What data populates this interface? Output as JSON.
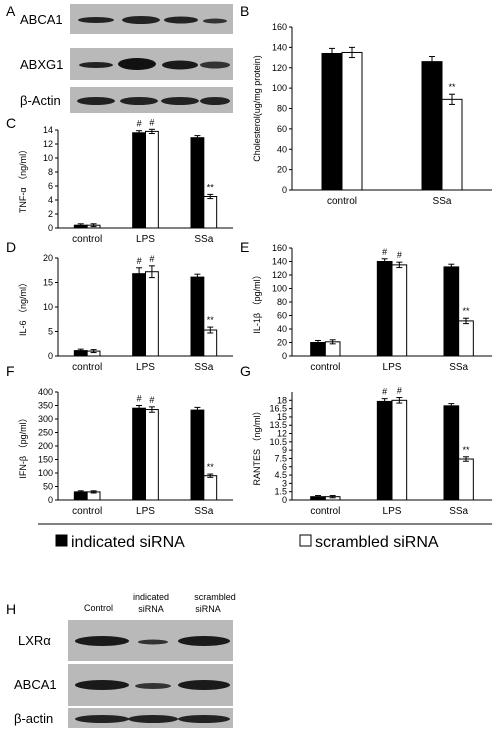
{
  "panel_letters": {
    "A": "A",
    "B": "B",
    "C": "C",
    "D": "D",
    "E": "E",
    "F": "F",
    "G": "G",
    "H": "H"
  },
  "blot_A": {
    "bands": [
      "ABCA1",
      "ABXG1",
      "β-Actin"
    ]
  },
  "blot_H": {
    "lanes": [
      "Control",
      "indicated siRNA",
      "scrambled siRNA"
    ],
    "bands": [
      "LXRα",
      "ABCA1",
      "β-actin"
    ]
  },
  "legend": {
    "indicated": "indicated siRNA",
    "scrambled": "scrambled siRNA"
  },
  "colors": {
    "indicated": "#000000",
    "scrambled": "#ffffff",
    "blot_bg": "#b9b9b9",
    "band": "#222222"
  },
  "chart_data": [
    {
      "id": "B",
      "type": "bar",
      "categories": [
        "control",
        "SSa"
      ],
      "series": [
        {
          "values": [
            134,
            126
          ],
          "errors": [
            5,
            5
          ]
        },
        {
          "values": [
            135,
            89
          ],
          "errors": [
            5,
            5
          ]
        }
      ],
      "ylabel": "Cholesterol(ug/mg protein)",
      "ylim": [
        0,
        160
      ],
      "yticks": [
        0,
        20,
        40,
        60,
        80,
        100,
        120,
        140,
        160
      ],
      "annotations": [
        {
          "cat": 1,
          "series": 1,
          "text": "**"
        }
      ]
    },
    {
      "id": "C",
      "type": "bar",
      "categories": [
        "control",
        "LPS",
        "SSa"
      ],
      "series": [
        {
          "values": [
            0.4,
            13.6,
            12.9
          ],
          "errors": [
            0.2,
            0.3,
            0.3
          ]
        },
        {
          "values": [
            0.4,
            13.8,
            4.5
          ],
          "errors": [
            0.2,
            0.3,
            0.3
          ]
        }
      ],
      "ylabel": "TNF-α （ng/ml）",
      "ylim": [
        0,
        14
      ],
      "yticks": [
        0,
        2,
        4,
        6,
        8,
        10,
        12,
        14
      ],
      "annotations": [
        {
          "cat": 1,
          "series": 0,
          "text": "#"
        },
        {
          "cat": 1,
          "series": 1,
          "text": "#"
        },
        {
          "cat": 2,
          "series": 1,
          "text": "**"
        }
      ]
    },
    {
      "id": "D",
      "type": "bar",
      "categories": [
        "control",
        "LPS",
        "SSa"
      ],
      "series": [
        {
          "values": [
            1.1,
            16.8,
            16.1
          ],
          "errors": [
            0.3,
            1.2,
            0.6
          ]
        },
        {
          "values": [
            1.0,
            17.2,
            5.3
          ],
          "errors": [
            0.3,
            1.2,
            0.6
          ]
        }
      ],
      "ylabel": "IL-6 （ng/ml）",
      "ylim": [
        0,
        20
      ],
      "yticks": [
        0,
        5,
        10,
        15,
        20
      ],
      "annotations": [
        {
          "cat": 1,
          "series": 0,
          "text": "#"
        },
        {
          "cat": 1,
          "series": 1,
          "text": "#"
        },
        {
          "cat": 2,
          "series": 1,
          "text": "**"
        }
      ]
    },
    {
      "id": "E",
      "type": "bar",
      "categories": [
        "control",
        "LPS",
        "SSa"
      ],
      "series": [
        {
          "values": [
            20,
            140,
            132
          ],
          "errors": [
            3,
            4,
            4
          ]
        },
        {
          "values": [
            21,
            135,
            52
          ],
          "errors": [
            3,
            4,
            4
          ]
        }
      ],
      "ylabel": "IL-1β （pg/ml）",
      "ylim": [
        0,
        160
      ],
      "yticks": [
        0,
        20,
        40,
        60,
        80,
        100,
        120,
        140,
        160
      ],
      "annotations": [
        {
          "cat": 1,
          "series": 0,
          "text": "#"
        },
        {
          "cat": 1,
          "series": 1,
          "text": "#"
        },
        {
          "cat": 2,
          "series": 1,
          "text": "**"
        }
      ]
    },
    {
      "id": "F",
      "type": "bar",
      "categories": [
        "control",
        "LPS",
        "SSa"
      ],
      "series": [
        {
          "values": [
            30,
            340,
            333
          ],
          "errors": [
            4,
            10,
            10
          ]
        },
        {
          "values": [
            30,
            335,
            90
          ],
          "errors": [
            4,
            10,
            6
          ]
        }
      ],
      "ylabel": "IFN-β （pg/ml）",
      "ylim": [
        0,
        400
      ],
      "yticks": [
        0,
        50,
        100,
        150,
        200,
        250,
        300,
        350,
        400
      ],
      "annotations": [
        {
          "cat": 1,
          "series": 0,
          "text": "#"
        },
        {
          "cat": 1,
          "series": 1,
          "text": "#"
        },
        {
          "cat": 2,
          "series": 1,
          "text": "**"
        }
      ]
    },
    {
      "id": "G",
      "type": "bar",
      "categories": [
        "control",
        "LPS",
        "SSa"
      ],
      "series": [
        {
          "values": [
            0.6,
            17.8,
            17.0
          ],
          "errors": [
            0.2,
            0.5,
            0.4
          ]
        },
        {
          "values": [
            0.6,
            18.0,
            7.4
          ],
          "errors": [
            0.2,
            0.5,
            0.4
          ]
        }
      ],
      "ylabel": "RANTES （ng/ml）",
      "ylim": [
        0,
        19.5
      ],
      "yticks": [
        0,
        1.5,
        3,
        4.5,
        6,
        7.5,
        9,
        10.5,
        12,
        13.5,
        15,
        16.5,
        18
      ],
      "annotations": [
        {
          "cat": 1,
          "series": 0,
          "text": "#"
        },
        {
          "cat": 1,
          "series": 1,
          "text": "#"
        },
        {
          "cat": 2,
          "series": 1,
          "text": "**"
        }
      ]
    }
  ]
}
